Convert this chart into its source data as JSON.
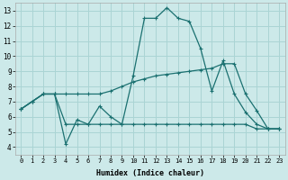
{
  "xlabel": "Humidex (Indice chaleur)",
  "xlim": [
    -0.5,
    23.5
  ],
  "ylim": [
    3.5,
    13.5
  ],
  "yticks": [
    4,
    5,
    6,
    7,
    8,
    9,
    10,
    11,
    12,
    13
  ],
  "xticks": [
    0,
    1,
    2,
    3,
    4,
    5,
    6,
    7,
    8,
    9,
    10,
    11,
    12,
    13,
    14,
    15,
    16,
    17,
    18,
    19,
    20,
    21,
    22,
    23
  ],
  "bg_color": "#cce9e9",
  "grid_color": "#aad4d4",
  "line_color": "#1a7070",
  "line1_y": [
    6.5,
    7.0,
    7.5,
    7.5,
    4.2,
    5.8,
    5.5,
    6.7,
    6.0,
    5.5,
    8.7,
    12.5,
    12.5,
    13.2,
    12.5,
    12.3,
    10.5,
    7.7,
    9.7,
    7.5,
    6.3,
    5.5,
    5.2,
    5.2
  ],
  "line2_y": [
    6.5,
    7.0,
    7.5,
    7.5,
    5.5,
    5.5,
    5.5,
    5.5,
    5.5,
    5.5,
    5.5,
    5.5,
    5.5,
    5.5,
    5.5,
    5.5,
    5.5,
    5.5,
    5.5,
    5.5,
    5.5,
    5.2,
    5.2,
    5.2
  ],
  "line3_y": [
    6.5,
    7.0,
    7.5,
    7.5,
    7.5,
    7.5,
    7.5,
    7.5,
    7.7,
    8.0,
    8.3,
    8.5,
    8.7,
    8.8,
    8.9,
    9.0,
    9.1,
    9.2,
    9.5,
    9.5,
    7.5,
    6.4,
    5.2,
    5.2
  ]
}
